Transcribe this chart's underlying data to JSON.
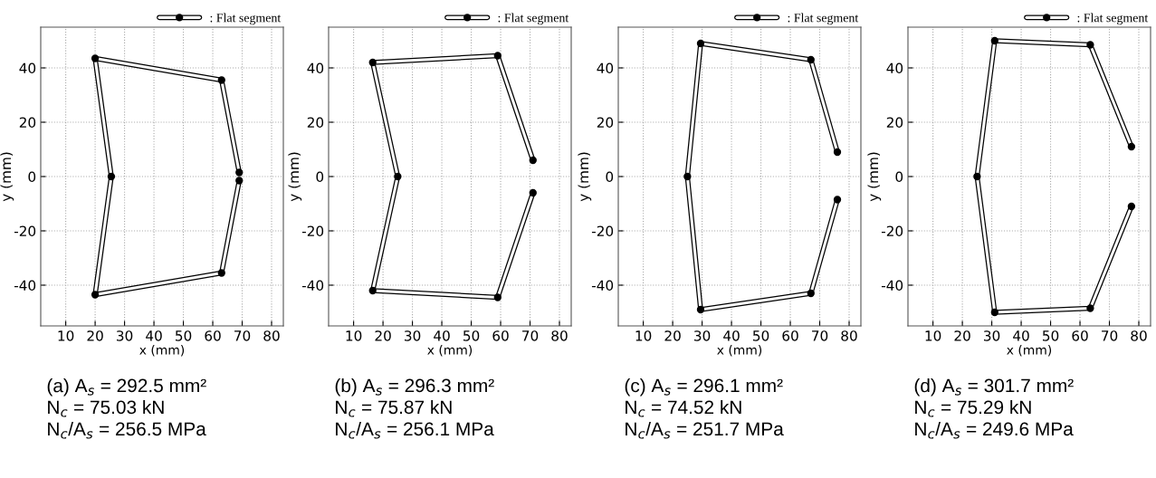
{
  "chart_data": [
    {
      "type": "line",
      "xlabel": "x (mm)",
      "ylabel": "y (mm)",
      "xlim": [
        1.5,
        84
      ],
      "ylim": [
        -55,
        55
      ],
      "xticks": [
        10,
        20,
        30,
        40,
        50,
        60,
        70,
        80
      ],
      "yticks": [
        -40,
        -20,
        0,
        20,
        40
      ],
      "grid": true,
      "legend": "top right",
      "marker": "circle",
      "line_style": "solid",
      "series": [
        {
          "name": ": Flat segment",
          "color": "#ffffff",
          "x": [
            69,
            63,
            20,
            25.5,
            20,
            63,
            69
          ],
          "values": [
            1.5,
            35.5,
            43.5,
            0,
            -43.5,
            -35.5,
            -1.5
          ]
        }
      ],
      "annotations": [
        "(a) A$_{s}$ = 292.5 mm²",
        "N$_{c}$ = 75.03 kN",
        "N$_{c}$/A$_{s}$ = 256.5 MPa"
      ]
    },
    {
      "type": "line",
      "xlabel": "x (mm)",
      "ylabel": "y (mm)",
      "xlim": [
        1.5,
        84
      ],
      "ylim": [
        -55,
        55
      ],
      "xticks": [
        10,
        20,
        30,
        40,
        50,
        60,
        70,
        80
      ],
      "yticks": [
        -40,
        -20,
        0,
        20,
        40
      ],
      "grid": true,
      "legend": "top right",
      "marker": "circle",
      "line_style": "solid",
      "series": [
        {
          "name": ": Flat segment",
          "color": "#ffffff",
          "x": [
            71,
            59,
            16.5,
            25,
            16.5,
            59,
            71
          ],
          "values": [
            6,
            44.5,
            42,
            0,
            -42,
            -44.5,
            -6
          ]
        }
      ],
      "annotations": [
        "(b) A$_{s}$ = 296.3 mm²",
        "N$_{c}$ = 75.87 kN",
        "N$_{c}$/A$_{s}$ = 256.1 MPa"
      ]
    },
    {
      "type": "line",
      "xlabel": "x (mm)",
      "ylabel": "y (mm)",
      "xlim": [
        1.5,
        84
      ],
      "ylim": [
        -55,
        55
      ],
      "xticks": [
        10,
        20,
        30,
        40,
        50,
        60,
        70,
        80
      ],
      "yticks": [
        -40,
        -20,
        0,
        20,
        40
      ],
      "grid": true,
      "legend": "top right",
      "marker": "circle",
      "line_style": "solid",
      "series": [
        {
          "name": ": Flat segment",
          "color": "#ffffff",
          "x": [
            76,
            67,
            29.5,
            25,
            29.5,
            67,
            76
          ],
          "values": [
            9,
            43,
            49,
            0,
            -49,
            -43,
            -8.5
          ]
        }
      ],
      "annotations": [
        "(c) A$_{s}$ = 296.1 mm²",
        "N$_{c}$ = 74.52 kN",
        "N$_{c}$/A$_{s}$ = 251.7 MPa"
      ]
    },
    {
      "type": "line",
      "xlabel": "x (mm)",
      "ylabel": "y (mm)",
      "xlim": [
        1.5,
        84
      ],
      "ylim": [
        -55,
        55
      ],
      "xticks": [
        10,
        20,
        30,
        40,
        50,
        60,
        70,
        80
      ],
      "yticks": [
        -40,
        -20,
        0,
        20,
        40
      ],
      "grid": true,
      "legend": "top right",
      "marker": "circle",
      "line_style": "solid",
      "series": [
        {
          "name": ": Flat segment",
          "color": "#ffffff",
          "x": [
            77.5,
            63.5,
            31,
            25,
            31,
            63.5,
            77.5
          ],
          "values": [
            11,
            48.5,
            50,
            0,
            -50,
            -48.5,
            -11
          ]
        }
      ],
      "annotations": [
        "(d) A$_{s}$ = 301.7 mm²",
        "N$_{c}$ = 75.29 kN",
        "N$_{c}$/A$_{s}$ = 249.6 MPa"
      ]
    }
  ]
}
